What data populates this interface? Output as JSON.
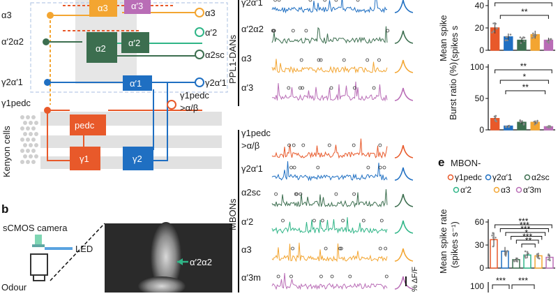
{
  "colors": {
    "g1pedc": "#e8592a",
    "g2a1": "#1f6fc2",
    "a2sc": "#3c6e4f",
    "a2": "#2fb587",
    "a3": "#f3a531",
    "a3m": "#b96db6",
    "grey": "#d9d9d9"
  },
  "diagram": {
    "left_labels": [
      "α3",
      "α′2α2",
      "γ2α′1",
      "γ1pedc"
    ],
    "right_labels": [
      "α3",
      "α′2",
      "α2sc",
      "γ2α′1",
      "γ1pedc",
      ">α/β"
    ],
    "kenyon_label": "Kenyon cells",
    "compartments": [
      "α3",
      "α′3",
      "α2",
      "α′2",
      "α′1",
      "pedc",
      "γ1",
      "γ2"
    ]
  },
  "panel_b": {
    "letter": "b",
    "camera": "sCMOS camera",
    "led": "LED",
    "odour": "Odour",
    "annotation": "α′2α2"
  },
  "traces": {
    "dans_group": "PPL1-DANs",
    "dans": [
      "γ2α′1",
      "α′2α2",
      "α3",
      "α′3"
    ],
    "mbons_group": "MBONs",
    "mbons": [
      "γ1pedc",
      ">α/β",
      "γ2α′1",
      "α2sc",
      "α′2",
      "α3",
      "α′3m"
    ],
    "scale": "% ΔF/F"
  },
  "chart_data": [
    {
      "type": "bar",
      "ylabel": "Mean spike rate (spikes s⁻¹)",
      "ylabel_lines": [
        "Mean spike",
        "(spikes s"
      ],
      "categories": [
        "γ2α′1",
        "α′2α2",
        "α3",
        "α′3",
        "γ1pedc"
      ],
      "values": [
        20,
        12,
        9,
        14,
        9
      ],
      "yticks": [
        "40",
        "20",
        "0"
      ],
      "ylim": [
        0,
        45
      ],
      "significance": [
        "***",
        "**"
      ]
    },
    {
      "type": "bar",
      "ylabel": "Burst ratio (%)",
      "categories": [
        "γ2α′1",
        "α′2α2",
        "α3",
        "α′3",
        "γ1pedc"
      ],
      "values": [
        18,
        6,
        12,
        12,
        5
      ],
      "yticks": [
        "100",
        "50",
        "0"
      ],
      "ylim": [
        0,
        100
      ],
      "significance": [
        "**",
        "*",
        "**"
      ]
    },
    {
      "type": "bar",
      "letter": "e",
      "title": "MBON-",
      "legend": [
        "γ1pedc",
        "γ2α′1",
        "α2sc",
        "α′2",
        "α3",
        "α′3m"
      ],
      "ylabel": "Mean spike rate (spikes s⁻¹)",
      "ylabel_lines": [
        "Mean spike rate",
        "(spikes s⁻¹)"
      ],
      "categories": [
        "γ1pedc",
        "γ2α′1",
        "α2sc",
        "α′2",
        "α3",
        "α′3m"
      ],
      "values": [
        37,
        22,
        11,
        17,
        16,
        14
      ],
      "yticks": [
        "60",
        "30",
        "0"
      ],
      "ylim": [
        0,
        60
      ],
      "significance": [
        "***",
        "***",
        "***",
        "*",
        "***",
        "**"
      ],
      "next_ytick": "100",
      "next_significance": [
        "***",
        "***"
      ]
    }
  ]
}
